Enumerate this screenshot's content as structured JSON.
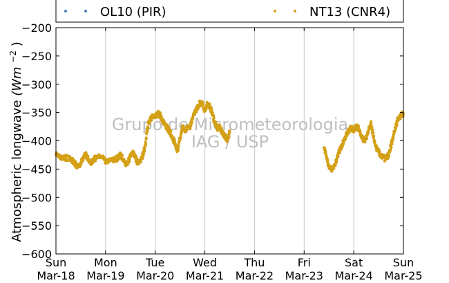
{
  "chart_data": {
    "type": "scatter",
    "title": "",
    "xlabel": "",
    "ylabel": "Atmospheric longwave",
    "ylabel_math": {
      "base": "(Wm",
      "exp": "−2",
      "close": ")"
    },
    "ylim": [
      -600,
      -200
    ],
    "yticks": [
      -200,
      -250,
      -300,
      -350,
      -400,
      -450,
      -500,
      -550,
      -600
    ],
    "ytick_labels": [
      "−200",
      "−250",
      "−300",
      "−350",
      "−400",
      "−450",
      "−500",
      "−550",
      "−600"
    ],
    "xlim": [
      0,
      7
    ],
    "xticks": [
      0,
      1,
      2,
      3,
      4,
      5,
      6,
      7
    ],
    "xtick_labels": [
      {
        "day": "Sun",
        "date": "Mar-18"
      },
      {
        "day": "Mon",
        "date": "Mar-19"
      },
      {
        "day": "Tue",
        "date": "Mar-20"
      },
      {
        "day": "Wed",
        "date": "Mar-21"
      },
      {
        "day": "Thu",
        "date": "Mar-22"
      },
      {
        "day": "Fri",
        "date": "Mar-23"
      },
      {
        "day": "Sat",
        "date": "Mar-24"
      },
      {
        "day": "Sun",
        "date": "Mar-25"
      }
    ],
    "grid": "x-vertical",
    "legend_position": "top",
    "watermark": [
      "Grupo de Micrometeorologia",
      "IAG / USP"
    ],
    "series": [
      {
        "name": "OL10 (PIR)",
        "color": "#4a7fb0",
        "x": [],
        "values": []
      },
      {
        "name": "NT13 (CNR4)",
        "color": "#d4a017",
        "x": [
          0.0,
          0.1,
          0.2,
          0.3,
          0.35,
          0.4,
          0.45,
          0.5,
          0.55,
          0.6,
          0.65,
          0.7,
          0.75,
          0.8,
          0.9,
          1.0,
          1.1,
          1.2,
          1.25,
          1.3,
          1.35,
          1.4,
          1.45,
          1.5,
          1.55,
          1.6,
          1.65,
          1.7,
          1.75,
          1.8,
          1.85,
          1.9,
          2.0,
          2.05,
          2.1,
          2.15,
          2.2,
          2.25,
          2.3,
          2.35,
          2.4,
          2.45,
          2.5,
          2.55,
          2.6,
          2.7,
          2.75,
          2.8,
          2.85,
          2.9,
          2.95,
          3.0,
          3.05,
          3.1,
          3.15,
          3.2,
          3.25,
          3.3,
          3.35,
          3.4,
          3.45,
          3.5,
          5.4,
          5.45,
          5.5,
          5.55,
          5.6,
          5.65,
          5.7,
          5.75,
          5.8,
          5.85,
          5.9,
          5.95,
          6.0,
          6.05,
          6.1,
          6.15,
          6.2,
          6.25,
          6.3,
          6.35,
          6.4,
          6.45,
          6.5,
          6.55,
          6.6,
          6.65,
          6.7,
          6.75,
          6.8,
          6.85,
          6.9,
          6.95,
          7.0
        ],
        "values": [
          -425,
          -428,
          -430,
          -432,
          -437,
          -442,
          -445,
          -440,
          -430,
          -425,
          -432,
          -440,
          -435,
          -430,
          -427,
          -435,
          -435,
          -433,
          -430,
          -425,
          -432,
          -440,
          -438,
          -428,
          -422,
          -430,
          -440,
          -435,
          -425,
          -410,
          -375,
          -360,
          -355,
          -352,
          -355,
          -365,
          -372,
          -378,
          -385,
          -395,
          -405,
          -418,
          -395,
          -375,
          -382,
          -375,
          -362,
          -350,
          -340,
          -333,
          -335,
          -345,
          -335,
          -340,
          -352,
          -368,
          -380,
          -375,
          -385,
          -392,
          -397,
          -385,
          -412,
          -430,
          -445,
          -450,
          -445,
          -435,
          -420,
          -410,
          -400,
          -390,
          -382,
          -377,
          -380,
          -376,
          -378,
          -390,
          -400,
          -395,
          -380,
          -370,
          -395,
          -412,
          -420,
          -425,
          -430,
          -432,
          -425,
          -410,
          -390,
          -372,
          -360,
          -355,
          -352
        ]
      }
    ]
  }
}
